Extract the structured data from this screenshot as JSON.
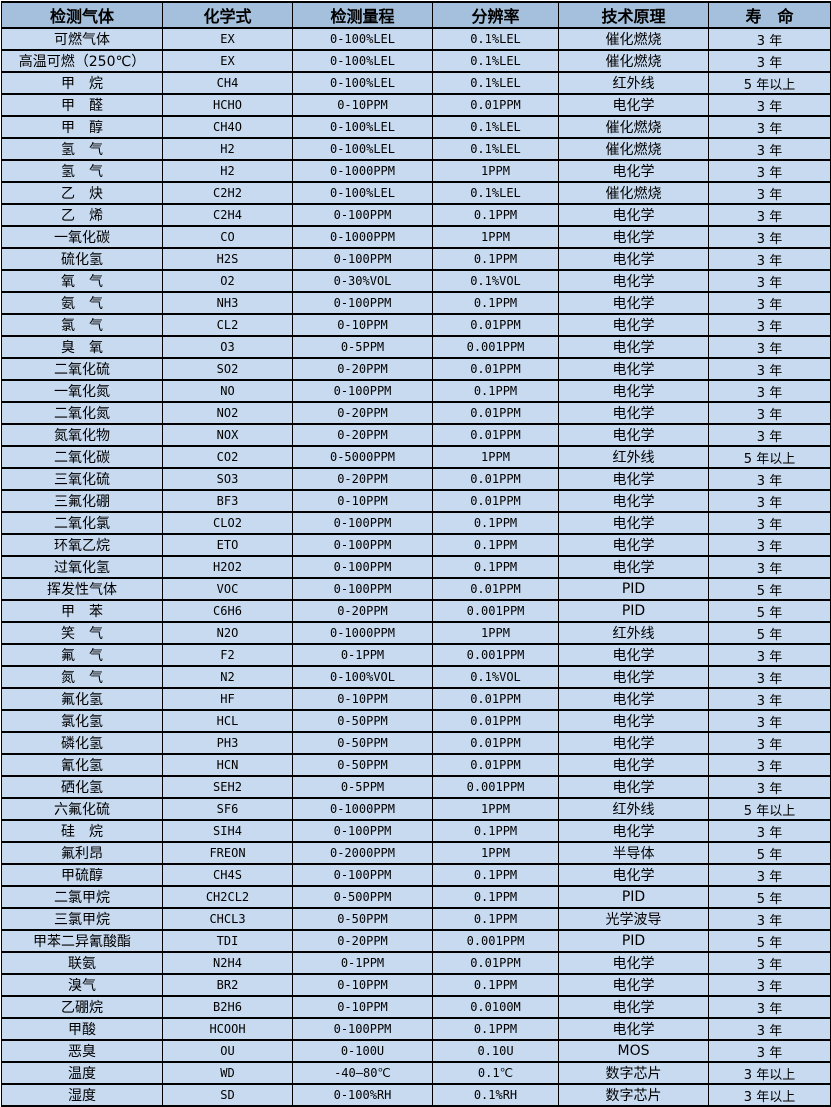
{
  "table": {
    "colors": {
      "header_bg": "#a5c0dc",
      "row_bg": "#c8daf0",
      "border": "#000000",
      "text": "#000000"
    },
    "columns": [
      "检测气体",
      "化学式",
      "检测量程",
      "分辨率",
      "技术原理",
      "寿　命"
    ],
    "rows": [
      [
        "可燃气体",
        "EX",
        "0-100%LEL",
        "0.1%LEL",
        "催化燃烧",
        "3 年"
      ],
      [
        "高温可燃（250℃）",
        "EX",
        "0-100%LEL",
        "0.1%LEL",
        "催化燃烧",
        "3 年"
      ],
      [
        "甲　烷",
        "CH4",
        "0-100%LEL",
        "0.1%LEL",
        "红外线",
        "5 年以上"
      ],
      [
        "甲　醛",
        "HCHO",
        "0-10PPM",
        "0.01PPM",
        "电化学",
        "3 年"
      ],
      [
        "甲　醇",
        "CH4O",
        "0-100%LEL",
        "0.1%LEL",
        "催化燃烧",
        "3 年"
      ],
      [
        "氢　气",
        "H2",
        "0-100%LEL",
        "0.1%LEL",
        "催化燃烧",
        "3 年"
      ],
      [
        "氢　气",
        "H2",
        "0-1000PPM",
        "1PPM",
        "电化学",
        "3 年"
      ],
      [
        "乙　炔",
        "C2H2",
        "0-100%LEL",
        "0.1%LEL",
        "催化燃烧",
        "3 年"
      ],
      [
        "乙　烯",
        "C2H4",
        "0-100PPM",
        "0.1PPM",
        "电化学",
        "3 年"
      ],
      [
        "一氧化碳",
        "CO",
        "0-1000PPM",
        "1PPM",
        "电化学",
        "3 年"
      ],
      [
        "硫化氢",
        "H2S",
        "0-100PPM",
        "0.1PPM",
        "电化学",
        "3 年"
      ],
      [
        "氧　气",
        "O2",
        "0-30%VOL",
        "0.1%VOL",
        "电化学",
        "3 年"
      ],
      [
        "氨　气",
        "NH3",
        "0-100PPM",
        "0.1PPM",
        "电化学",
        "3 年"
      ],
      [
        "氯　气",
        "CL2",
        "0-10PPM",
        "0.01PPM",
        "电化学",
        "3 年"
      ],
      [
        "臭　氧",
        "O3",
        "0-5PPM",
        "0.001PPM",
        "电化学",
        "3 年"
      ],
      [
        "二氧化硫",
        "SO2",
        "0-20PPM",
        "0.01PPM",
        "电化学",
        "3 年"
      ],
      [
        "一氧化氮",
        "NO",
        "0-100PPM",
        "0.1PPM",
        "电化学",
        "3 年"
      ],
      [
        "二氧化氮",
        "NO2",
        "0-20PPM",
        "0.01PPM",
        "电化学",
        "3 年"
      ],
      [
        "氮氧化物",
        "NOX",
        "0-20PPM",
        "0.01PPM",
        "电化学",
        "3 年"
      ],
      [
        "二氧化碳",
        "CO2",
        "0-5000PPM",
        "1PPM",
        "红外线",
        "5 年以上"
      ],
      [
        "三氧化硫",
        "SO3",
        "0-20PPM",
        "0.01PPM",
        "电化学",
        "3 年"
      ],
      [
        "三氟化硼",
        "BF3",
        "0-10PPM",
        "0.01PPM",
        "电化学",
        "3 年"
      ],
      [
        "二氧化氯",
        "CLO2",
        "0-100PPM",
        "0.1PPM",
        "电化学",
        "3 年"
      ],
      [
        "环氧乙烷",
        "ETO",
        "0-100PPM",
        "0.1PPM",
        "电化学",
        "3 年"
      ],
      [
        "过氧化氢",
        "H2O2",
        "0-100PPM",
        "0.1PPM",
        "电化学",
        "3 年"
      ],
      [
        "挥发性气体",
        "VOC",
        "0-100PPM",
        "0.01PPM",
        "PID",
        "5 年"
      ],
      [
        "甲　苯",
        "C6H6",
        "0-20PPM",
        "0.001PPM",
        "PID",
        "5 年"
      ],
      [
        "笑　气",
        "N2O",
        "0-1000PPM",
        "1PPM",
        "红外线",
        "5 年"
      ],
      [
        "氟　气",
        "F2",
        "0-1PPM",
        "0.001PPM",
        "电化学",
        "3 年"
      ],
      [
        "氮　气",
        "N2",
        "0-100%VOL",
        "0.1%VOL",
        "电化学",
        "3 年"
      ],
      [
        "氟化氢",
        "HF",
        "0-10PPM",
        "0.01PPM",
        "电化学",
        "3 年"
      ],
      [
        "氯化氢",
        "HCL",
        "0-50PPM",
        "0.01PPM",
        "电化学",
        "3 年"
      ],
      [
        "磷化氢",
        "PH3",
        "0-50PPM",
        "0.01PPM",
        "电化学",
        "3 年"
      ],
      [
        "氰化氢",
        "HCN",
        "0-50PPM",
        "0.01PPM",
        "电化学",
        "3 年"
      ],
      [
        "硒化氢",
        "SEH2",
        "0-5PPM",
        "0.001PPM",
        "电化学",
        "3 年"
      ],
      [
        "六氟化硫",
        "SF6",
        "0-1000PPM",
        "1PPM",
        "红外线",
        "5 年以上"
      ],
      [
        "硅　烷",
        "SIH4",
        "0-100PPM",
        "0.1PPM",
        "电化学",
        "3 年"
      ],
      [
        "氟利昂",
        "FREON",
        "0-2000PPM",
        "1PPM",
        "半导体",
        "5 年"
      ],
      [
        "甲硫醇",
        "CH4S",
        "0-100PPM",
        "0.1PPM",
        "电化学",
        "3 年"
      ],
      [
        "二氯甲烷",
        "CH2CL2",
        "0-500PPM",
        "0.1PPM",
        "PID",
        "5 年"
      ],
      [
        "三氯甲烷",
        "CHCL3",
        "0-50PPM",
        "0.1PPM",
        "光学波导",
        "3 年"
      ],
      [
        "甲苯二异氰酸酯",
        "TDI",
        "0-20PPM",
        "0.001PPM",
        "PID",
        "5 年"
      ],
      [
        "联氨",
        "N2H4",
        "0-1PPM",
        "0.01PPM",
        "电化学",
        "3 年"
      ],
      [
        "溴气",
        "BR2",
        "0-10PPM",
        "0.1PPM",
        "电化学",
        "3 年"
      ],
      [
        "乙硼烷",
        "B2H6",
        "0-10PPM",
        "0.0100M",
        "电化学",
        "3 年"
      ],
      [
        "甲酸",
        "HCOOH",
        "0-100PPM",
        "0.1PPM",
        "电化学",
        "3 年"
      ],
      [
        "恶臭",
        "OU",
        "0-100U",
        "0.10U",
        "MOS",
        "3 年"
      ],
      [
        "温度",
        "WD",
        "-40—80℃",
        "0.1℃",
        "数字芯片",
        "3 年以上"
      ],
      [
        "湿度",
        "SD",
        "0-100%RH",
        "0.1%RH",
        "数字芯片",
        "3 年以上"
      ]
    ]
  }
}
